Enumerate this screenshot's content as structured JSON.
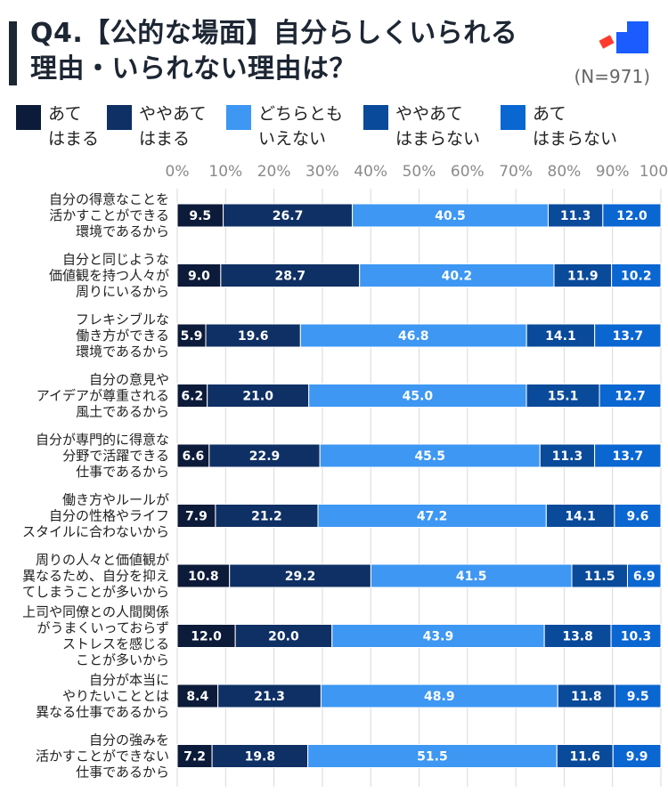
{
  "header": {
    "title_line1": "Q4.【公的な場面】自分らしくいられる",
    "title_line2": "理由・いられない理由は？",
    "sample_size": "(N=971)"
  },
  "colors": {
    "title_bar": "#1d2633",
    "logo_blue": "#1a5cff",
    "logo_red": "#ff3b2f"
  },
  "chart_data": {
    "type": "bar",
    "orientation": "horizontal",
    "stacked": true,
    "percent_scale": true,
    "xlim": [
      0,
      100
    ],
    "x_ticks": [
      "0%",
      "10%",
      "20%",
      "30%",
      "40%",
      "50%",
      "60%",
      "70%",
      "80%",
      "90%",
      "100%"
    ],
    "grid": true,
    "legend_position": "top",
    "categories": [
      [
        "自分の得意なことを",
        "活かすことができる",
        "環境であるから"
      ],
      [
        "自分と同じような",
        "価値観を持つ人々が",
        "周りにいるから"
      ],
      [
        "フレキシブルな",
        "働き方ができる",
        "環境であるから"
      ],
      [
        "自分の意見や",
        "アイデアが尊重される",
        "風土であるから"
      ],
      [
        "自分が専門的に得意な",
        "分野で活躍できる",
        "仕事であるから"
      ],
      [
        "働き方やルールが",
        "自分の性格やライフ",
        "スタイルに合わないから"
      ],
      [
        "周りの人々と価値観が",
        "異なるため、自分を抑え",
        "てしまうことが多いから"
      ],
      [
        "上司や同僚との人間関係",
        "がうまくいっておらず",
        "ストレスを感じる",
        "ことが多いから"
      ],
      [
        "自分が本当に",
        "やりたいこととは",
        "異なる仕事であるから"
      ],
      [
        "自分の強みを",
        "活かすことができない",
        "仕事であるから"
      ]
    ],
    "series": [
      {
        "name": "あて\nはまる",
        "legend_label": "あて\nはまる",
        "color": "#0d1b3a",
        "values": [
          9.5,
          9.0,
          5.9,
          6.2,
          6.6,
          7.9,
          10.8,
          12.0,
          8.4,
          7.2
        ]
      },
      {
        "name": "ややあて\nはまる",
        "legend_label": "ややあて\nはまる",
        "color": "#0f3064",
        "values": [
          26.7,
          28.7,
          19.6,
          21.0,
          22.9,
          21.2,
          29.2,
          20.0,
          21.3,
          19.8
        ]
      },
      {
        "name": "どちらとも\nいえない",
        "legend_label": "どちらとも\nいえない",
        "color": "#3d97f3",
        "values": [
          40.5,
          40.2,
          46.8,
          45.0,
          45.5,
          47.2,
          41.5,
          43.9,
          48.9,
          51.5
        ]
      },
      {
        "name": "ややあて\nはまらない",
        "legend_label": "ややあて\nはまらない",
        "color": "#0a4a9a",
        "values": [
          11.3,
          11.9,
          14.1,
          15.1,
          11.3,
          14.1,
          11.5,
          13.8,
          11.8,
          11.6
        ]
      },
      {
        "name": "あて\nはまらない",
        "legend_label": "あて\nはまらない",
        "color": "#0a66d1",
        "values": [
          12.0,
          10.2,
          13.7,
          12.7,
          13.7,
          9.6,
          6.9,
          10.3,
          9.5,
          9.9
        ]
      }
    ]
  }
}
